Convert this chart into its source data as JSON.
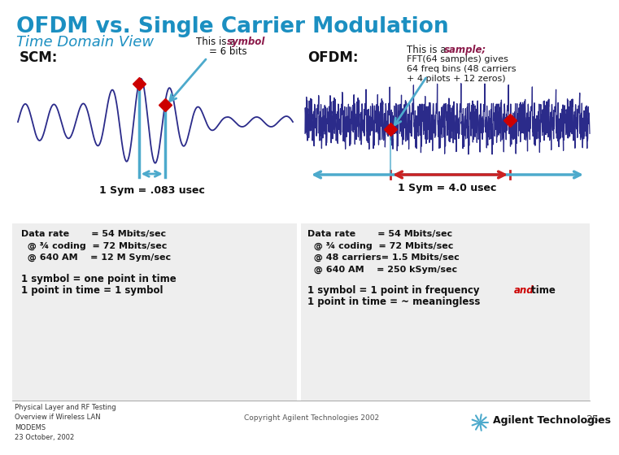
{
  "title": "OFDM vs. Single Carrier Modulation",
  "subtitle": "Time Domain View",
  "title_color": "#1b8fc1",
  "subtitle_color": "#1b8fc1",
  "bg_color": "#ffffff",
  "scm_label": "SCM:",
  "ofdm_label": "OFDM:",
  "scm_sym_text": "1 Sym = .083 usec",
  "ofdm_sym_text": "1 Sym = 4.0 usec",
  "this_is_symbol_pre": "This is a",
  "symbol_italic": "symbol",
  "equals_6bits": "= 6 bits",
  "this_is_sample_pre": "This is a",
  "sample_italic": "sample;",
  "fft_line1": "FFT(64 samples) gives",
  "fft_line2": "64 freq bins (48 carriers",
  "fft_line3": "+ 4 pilots + 12 zeros)",
  "scm_data_lines": [
    "Data rate       = 54 Mbits/sec",
    "  @ ¾ coding  = 72 Mbits/sec",
    "  @ 640 AM    = 12 M Sym/sec"
  ],
  "scm_bottom_lines": [
    "1 symbol = one point in time",
    "1 point in time = 1 symbol"
  ],
  "ofdm_data_lines": [
    "Data rate       = 54 Mbits/sec",
    "  @ ¾ coding  = 72 Mbits/sec",
    "  @ 48 carriers= 1.5 Mbits/sec",
    "  @ 640 AM    = 250 kSym/sec"
  ],
  "ofdm_freq_pre": "1 symbol = 1 point in frequency",
  "ofdm_and": "and",
  "ofdm_time": " time",
  "ofdm_meaningless": "1 point in time = ~ meaningless",
  "footer_left": "Physical Layer and RF Testing\nOverview if Wireless LAN\nMODEMS\n23 October, 2002",
  "footer_copy": "Copyright Agilent Technologies 2002",
  "footer_brand": "Agilent Technologies",
  "page_num": "25",
  "wave_color": "#2b2b8a",
  "marker_color": "#cc0000",
  "scm_arrow_color": "#4daacc",
  "ofdm_arrow_color": "#4daacc",
  "ofdm_red_arrow": "#cc2222",
  "gray_bg": "#eeeeee"
}
